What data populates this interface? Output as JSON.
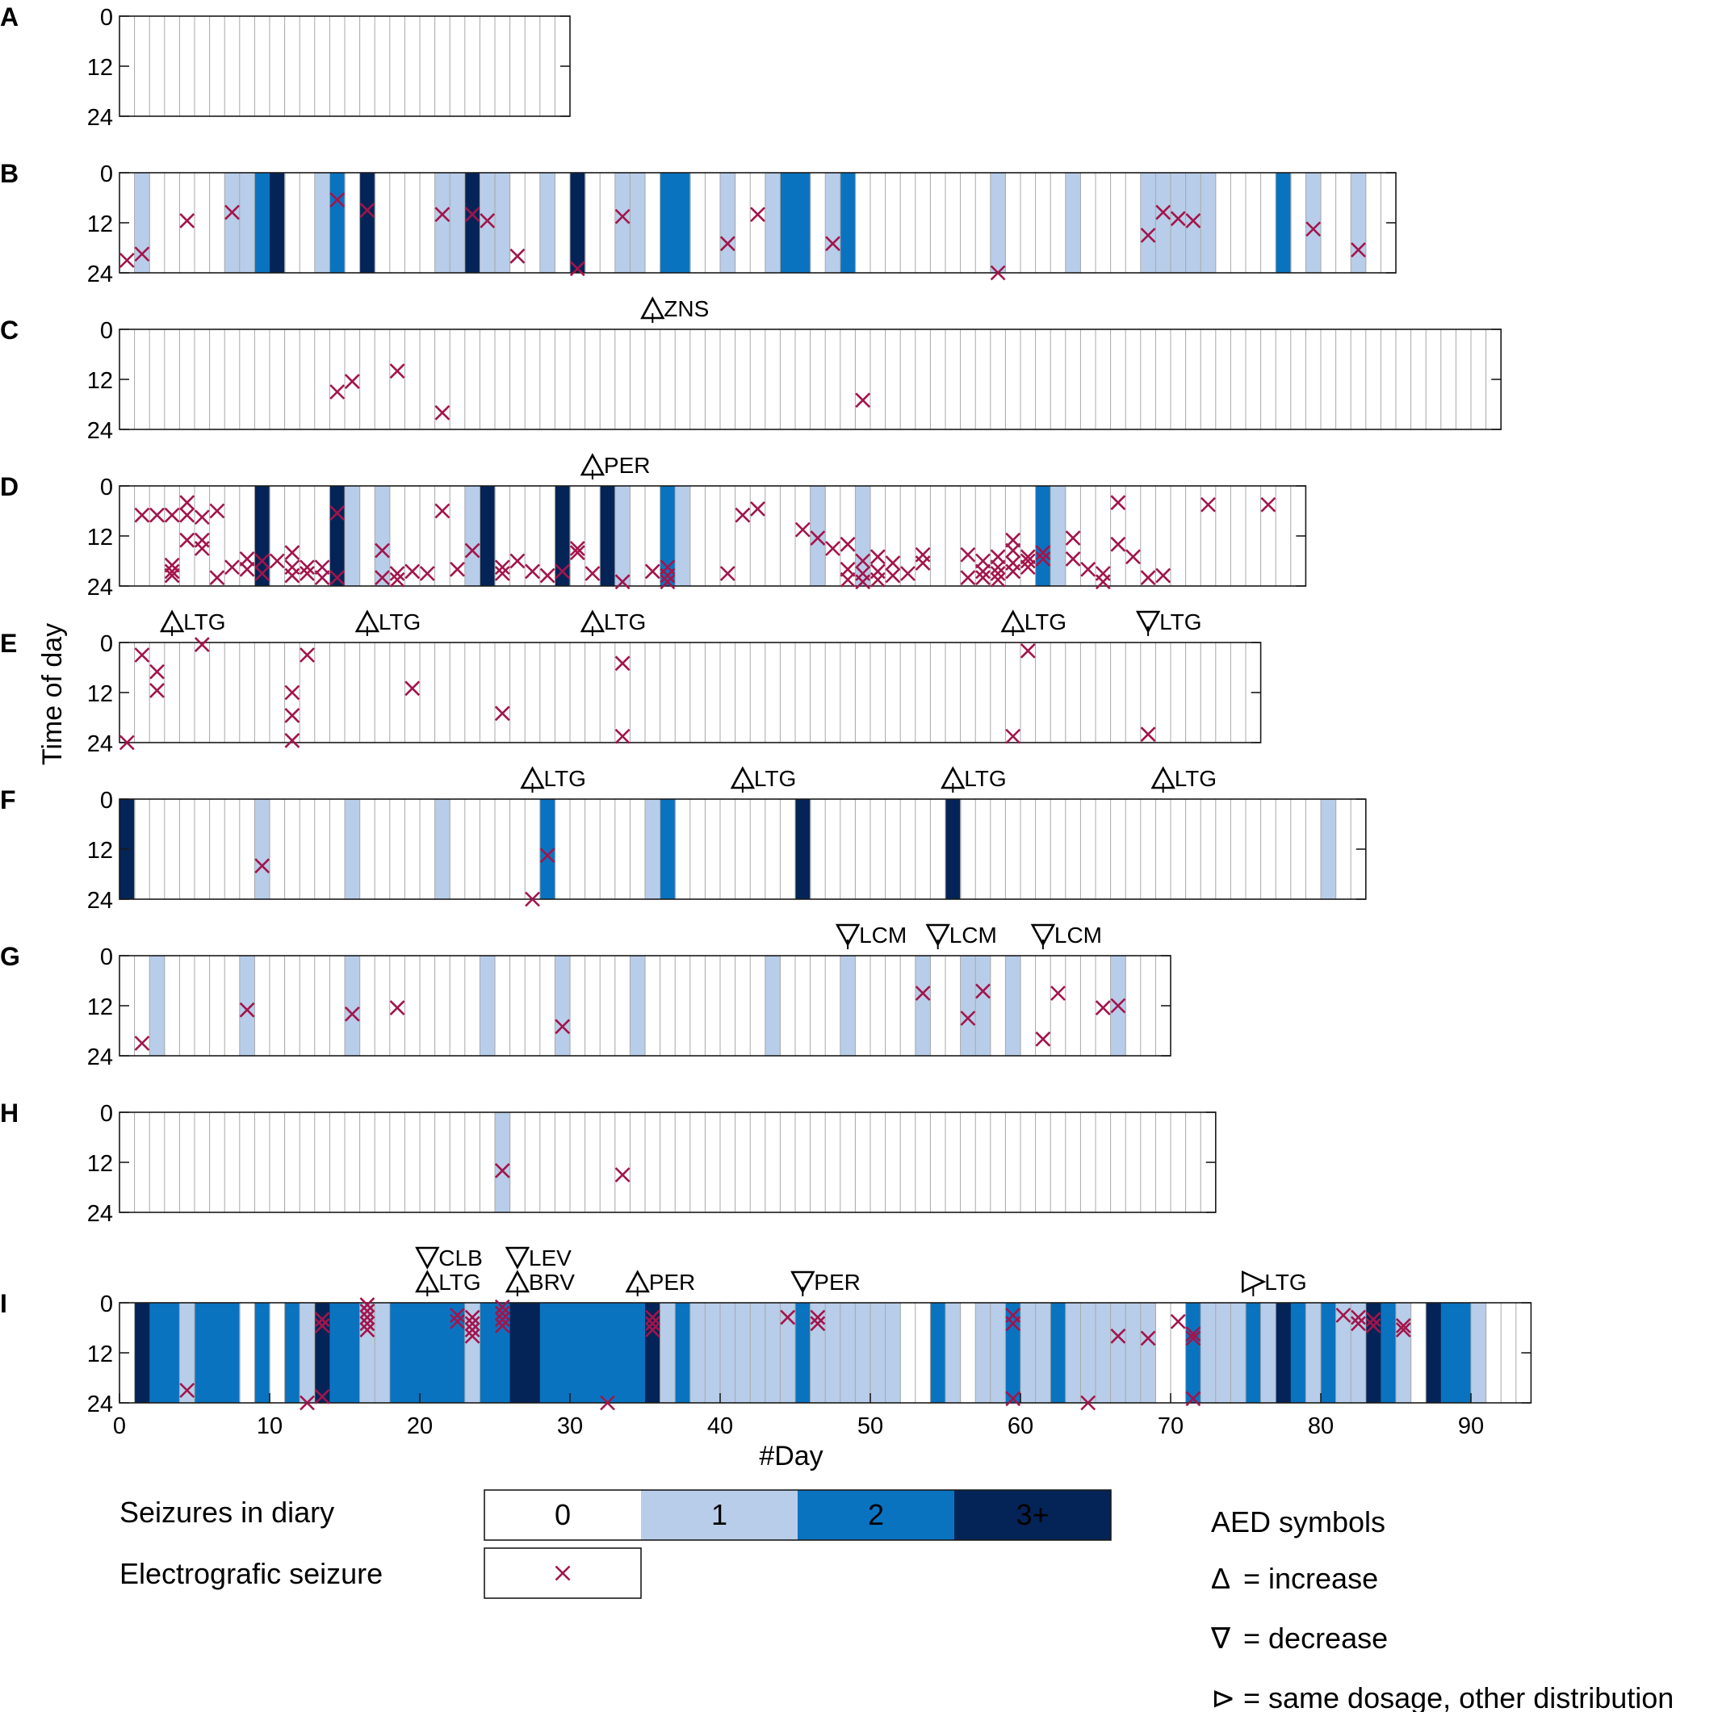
{
  "figure": {
    "ylabel": "Time of day",
    "xlabel": "#Day",
    "x_ticks": [
      "0",
      "10",
      "20",
      "30",
      "40",
      "50",
      "60",
      "70",
      "80",
      "90"
    ],
    "y_ticks": [
      "0",
      "12",
      "24"
    ]
  },
  "colors": {
    "level_0": "#ffffff",
    "level_1": "#b8cde9",
    "level_2": "#0a73c0",
    "level_3": "#042457",
    "seizure_marker": "#a3144b",
    "grid": "#a8a8a8"
  },
  "legend": {
    "diary_label": "Seizures in diary",
    "diary_levels": [
      "0",
      "1",
      "2",
      "3+"
    ],
    "electro_label": "Electrografic seizure",
    "aed_title": "AED symbols",
    "aed_items": [
      {
        "symbol": "Δ",
        "meaning": "= increase"
      },
      {
        "symbol": "∇",
        "meaning": "= decrease"
      },
      {
        "symbol": "⊳",
        "meaning": "= same dosage, other distribution"
      }
    ]
  },
  "chart_data": {
    "type": "heatmap",
    "description_units": {
      "x": "#Day",
      "y": "Time of day (h)"
    },
    "ylim": [
      0,
      24
    ],
    "xlim": [
      0,
      94
    ],
    "panels": [
      {
        "id": "A",
        "days": 30,
        "diary": {},
        "seizures": [],
        "aed": []
      },
      {
        "id": "B",
        "days": 85,
        "diary": {
          "1": 1,
          "7": 1,
          "8": 1,
          "9": 2,
          "10": 3,
          "13": 1,
          "14": 2,
          "16": 3,
          "21": 1,
          "22": 1,
          "23": 3,
          "24": 1,
          "25": 1,
          "28": 1,
          "30": 3,
          "33": 1,
          "34": 1,
          "36": 2,
          "37": 2,
          "40": 1,
          "43": 1,
          "44": 2,
          "45": 2,
          "47": 1,
          "48": 2,
          "58": 1,
          "63": 1,
          "68": 1,
          "69": 1,
          "70": 1,
          "71": 1,
          "72": 1,
          "77": 2,
          "79": 1,
          "82": 1
        },
        "seizures": [
          [
            0.5,
            21
          ],
          [
            1.5,
            19.5
          ],
          [
            4.5,
            11.5
          ],
          [
            7.5,
            9.5
          ],
          [
            14.5,
            6.5
          ],
          [
            16.5,
            9
          ],
          [
            21.5,
            10
          ],
          [
            23.5,
            10
          ],
          [
            24.5,
            11.5
          ],
          [
            26.5,
            20
          ],
          [
            30.5,
            23
          ],
          [
            33.5,
            10.5
          ],
          [
            40.5,
            17
          ],
          [
            42.5,
            10
          ],
          [
            47.5,
            17
          ],
          [
            58.5,
            24
          ],
          [
            68.5,
            15
          ],
          [
            69.5,
            9.5
          ],
          [
            70.5,
            11
          ],
          [
            71.5,
            11.5
          ],
          [
            79.5,
            13.5
          ],
          [
            82.5,
            18.5
          ]
        ],
        "aed": []
      },
      {
        "id": "C",
        "days": 92,
        "diary": {},
        "seizures": [
          [
            14.5,
            15
          ],
          [
            15.5,
            12.5
          ],
          [
            18.5,
            10
          ],
          [
            21.5,
            20
          ],
          [
            49.5,
            17
          ]
        ],
        "aed": [
          {
            "day": 35.5,
            "symbol": "increase",
            "drug": "ZNS"
          }
        ]
      },
      {
        "id": "D",
        "days": 79,
        "diary": {
          "9": 3,
          "14": 3,
          "15": 1,
          "17": 1,
          "23": 1,
          "24": 3,
          "29": 3,
          "32": 3,
          "33": 1,
          "36": 2,
          "37": 1,
          "46": 1,
          "49": 1,
          "61": 2,
          "62": 1
        },
        "seizures": [
          [
            1.5,
            7
          ],
          [
            2.5,
            7
          ],
          [
            3.5,
            7
          ],
          [
            3.5,
            19
          ],
          [
            3.5,
            20.5
          ],
          [
            3.5,
            21.5
          ],
          [
            4.5,
            4
          ],
          [
            4.5,
            7
          ],
          [
            4.5,
            13
          ],
          [
            5.5,
            7.5
          ],
          [
            5.5,
            13
          ],
          [
            5.5,
            15
          ],
          [
            6.5,
            6
          ],
          [
            6.5,
            22
          ],
          [
            7.5,
            19.5
          ],
          [
            8.5,
            17.5
          ],
          [
            8.5,
            20
          ],
          [
            9.5,
            18
          ],
          [
            9.5,
            21
          ],
          [
            10.5,
            18
          ],
          [
            11.5,
            16
          ],
          [
            11.5,
            19.5
          ],
          [
            11.5,
            21.5
          ],
          [
            12.5,
            19.5
          ],
          [
            12.5,
            21
          ],
          [
            13.5,
            19.5
          ],
          [
            13.5,
            22
          ],
          [
            14.5,
            6.5
          ],
          [
            14.5,
            22
          ],
          [
            17.5,
            15.5
          ],
          [
            17.5,
            22
          ],
          [
            18.5,
            21
          ],
          [
            18.5,
            22.5
          ],
          [
            19.5,
            20.5
          ],
          [
            20.5,
            21
          ],
          [
            21.5,
            6
          ],
          [
            22.5,
            20
          ],
          [
            23.5,
            15.5
          ],
          [
            25.5,
            19.5
          ],
          [
            25.5,
            21
          ],
          [
            26.5,
            18
          ],
          [
            27.5,
            20.5
          ],
          [
            28.5,
            21.5
          ],
          [
            29.5,
            20.5
          ],
          [
            30.5,
            15
          ],
          [
            30.5,
            16
          ],
          [
            31.5,
            21
          ],
          [
            33.5,
            23
          ],
          [
            35.5,
            20.5
          ],
          [
            36.5,
            19.5
          ],
          [
            36.5,
            21.5
          ],
          [
            36.5,
            23
          ],
          [
            40.5,
            21
          ],
          [
            41.5,
            7
          ],
          [
            42.5,
            5.5
          ],
          [
            45.5,
            10.5
          ],
          [
            46.5,
            12.5
          ],
          [
            47.5,
            15
          ],
          [
            48.5,
            14
          ],
          [
            48.5,
            20
          ],
          [
            48.5,
            22.5
          ],
          [
            49.5,
            18
          ],
          [
            49.5,
            21
          ],
          [
            49.5,
            23
          ],
          [
            50.5,
            17
          ],
          [
            50.5,
            20.5
          ],
          [
            50.5,
            22.5
          ],
          [
            51.5,
            18.5
          ],
          [
            51.5,
            21.5
          ],
          [
            52.5,
            21
          ],
          [
            53.5,
            16.5
          ],
          [
            53.5,
            18.5
          ],
          [
            56.5,
            16.5
          ],
          [
            56.5,
            22
          ],
          [
            57.5,
            18
          ],
          [
            57.5,
            20.5
          ],
          [
            57.5,
            22
          ],
          [
            58.5,
            17
          ],
          [
            58.5,
            19.5
          ],
          [
            58.5,
            21
          ],
          [
            58.5,
            22.5
          ],
          [
            59.5,
            13
          ],
          [
            59.5,
            15.5
          ],
          [
            59.5,
            18.5
          ],
          [
            59.5,
            20.5
          ],
          [
            60.5,
            17
          ],
          [
            60.5,
            18
          ],
          [
            60.5,
            19.5
          ],
          [
            61.5,
            16
          ],
          [
            61.5,
            17.5
          ],
          [
            63.5,
            12.5
          ],
          [
            63.5,
            17.5
          ],
          [
            64.5,
            20
          ],
          [
            65.5,
            21
          ],
          [
            65.5,
            23
          ],
          [
            66.5,
            4
          ],
          [
            66.5,
            14
          ],
          [
            67.5,
            17
          ],
          [
            68.5,
            22
          ],
          [
            69.5,
            21.5
          ],
          [
            72.5,
            4.5
          ],
          [
            76.5,
            4.5
          ]
        ],
        "aed": [
          {
            "day": 31.5,
            "symbol": "increase",
            "drug": "PER"
          }
        ]
      },
      {
        "id": "E",
        "days": 76,
        "diary": {},
        "seizures": [
          [
            0.5,
            24
          ],
          [
            1.5,
            3
          ],
          [
            2.5,
            7
          ],
          [
            2.5,
            11.5
          ],
          [
            5.5,
            0.5
          ],
          [
            11.5,
            12
          ],
          [
            11.5,
            17.5
          ],
          [
            11.5,
            23.5
          ],
          [
            12.5,
            3
          ],
          [
            19.5,
            11
          ],
          [
            25.5,
            17
          ],
          [
            33.5,
            5
          ],
          [
            33.5,
            22.5
          ],
          [
            59.5,
            22.5
          ],
          [
            60.5,
            2
          ],
          [
            68.5,
            22
          ]
        ],
        "aed": [
          {
            "day": 3.5,
            "symbol": "increase",
            "drug": "LTG"
          },
          {
            "day": 16.5,
            "symbol": "increase",
            "drug": "LTG"
          },
          {
            "day": 31.5,
            "symbol": "increase",
            "drug": "LTG"
          },
          {
            "day": 59.5,
            "symbol": "increase",
            "drug": "LTG"
          },
          {
            "day": 68.5,
            "symbol": "decrease",
            "drug": "LTG"
          }
        ]
      },
      {
        "id": "F",
        "days": 83,
        "diary": {
          "0": 3,
          "9": 1,
          "15": 1,
          "21": 1,
          "28": 2,
          "35": 1,
          "36": 2,
          "45": 3,
          "55": 3,
          "80": 1
        },
        "seizures": [
          [
            9.5,
            16
          ],
          [
            27.5,
            24
          ],
          [
            28.5,
            13.5
          ]
        ],
        "aed": [
          {
            "day": 27.5,
            "symbol": "increase",
            "drug": "LTG"
          },
          {
            "day": 41.5,
            "symbol": "increase",
            "drug": "LTG"
          },
          {
            "day": 55.5,
            "symbol": "increase",
            "drug": "LTG"
          },
          {
            "day": 69.5,
            "symbol": "increase",
            "drug": "LTG"
          }
        ]
      },
      {
        "id": "G",
        "days": 70,
        "diary": {
          "2": 1,
          "8": 1,
          "15": 1,
          "24": 1,
          "29": 1,
          "34": 1,
          "43": 1,
          "48": 1,
          "53": 1,
          "56": 1,
          "57": 1,
          "59": 1,
          "66": 1
        },
        "seizures": [
          [
            1.5,
            21
          ],
          [
            8.5,
            13
          ],
          [
            15.5,
            14
          ],
          [
            18.5,
            12.5
          ],
          [
            29.5,
            17
          ],
          [
            53.5,
            9
          ],
          [
            56.5,
            15
          ],
          [
            57.5,
            8.5
          ],
          [
            61.5,
            20
          ],
          [
            62.5,
            9
          ],
          [
            65.5,
            12.5
          ],
          [
            66.5,
            12
          ]
        ],
        "aed": [
          {
            "day": 48.5,
            "symbol": "decrease",
            "drug": "LCM"
          },
          {
            "day": 54.5,
            "symbol": "decrease",
            "drug": "LCM"
          },
          {
            "day": 61.5,
            "symbol": "decrease",
            "drug": "LCM"
          }
        ]
      },
      {
        "id": "H",
        "days": 73,
        "diary": {
          "25": 1
        },
        "seizures": [
          [
            25.5,
            14
          ],
          [
            33.5,
            15
          ]
        ],
        "aed": []
      },
      {
        "id": "I",
        "days": 94,
        "diary": {
          "1": 3,
          "2": 2,
          "3": 2,
          "4": 1,
          "5": 2,
          "6": 2,
          "7": 2,
          "9": 2,
          "11": 2,
          "12": 1,
          "13": 3,
          "14": 2,
          "15": 2,
          "16": 1,
          "17": 1,
          "18": 2,
          "19": 2,
          "20": 2,
          "21": 2,
          "22": 2,
          "23": 1,
          "24": 2,
          "25": 2,
          "26": 3,
          "27": 3,
          "28": 2,
          "29": 2,
          "30": 2,
          "31": 2,
          "32": 2,
          "33": 2,
          "34": 2,
          "35": 3,
          "36": 1,
          "37": 2,
          "38": 1,
          "39": 1,
          "40": 1,
          "41": 1,
          "42": 1,
          "43": 1,
          "44": 1,
          "45": 2,
          "46": 1,
          "47": 1,
          "48": 1,
          "49": 1,
          "50": 1,
          "51": 1,
          "54": 2,
          "55": 1,
          "57": 1,
          "58": 1,
          "59": 2,
          "60": 1,
          "61": 1,
          "62": 2,
          "63": 1,
          "64": 1,
          "65": 1,
          "66": 1,
          "67": 1,
          "68": 1,
          "71": 2,
          "72": 1,
          "73": 1,
          "74": 1,
          "75": 2,
          "76": 1,
          "77": 3,
          "78": 2,
          "79": 1,
          "80": 2,
          "81": 1,
          "82": 1,
          "83": 3,
          "84": 2,
          "85": 1,
          "87": 3,
          "88": 2,
          "89": 2,
          "90": 1
        },
        "seizures": [
          [
            4.5,
            21
          ],
          [
            12.5,
            24
          ],
          [
            13.5,
            4
          ],
          [
            13.5,
            5.5
          ],
          [
            13.5,
            22.5
          ],
          [
            16.5,
            0.5
          ],
          [
            16.5,
            2
          ],
          [
            16.5,
            3.5
          ],
          [
            16.5,
            5
          ],
          [
            16.5,
            6.5
          ],
          [
            22.5,
            3
          ],
          [
            22.5,
            4.5
          ],
          [
            23.5,
            3.5
          ],
          [
            23.5,
            5
          ],
          [
            23.5,
            6.5
          ],
          [
            23.5,
            8
          ],
          [
            25.5,
            1
          ],
          [
            25.5,
            2.5
          ],
          [
            25.5,
            4
          ],
          [
            25.5,
            5.5
          ],
          [
            32.5,
            24
          ],
          [
            35.5,
            3.5
          ],
          [
            35.5,
            5
          ],
          [
            35.5,
            6.5
          ],
          [
            44.5,
            3.5
          ],
          [
            46.5,
            3.5
          ],
          [
            46.5,
            5
          ],
          [
            59.5,
            3
          ],
          [
            59.5,
            5
          ],
          [
            59.5,
            23
          ],
          [
            64.5,
            24
          ],
          [
            66.5,
            8
          ],
          [
            68.5,
            8.5
          ],
          [
            70.5,
            4.5
          ],
          [
            71.5,
            7.5
          ],
          [
            71.5,
            8.5
          ],
          [
            71.5,
            23
          ],
          [
            81.5,
            3
          ],
          [
            82.5,
            3.5
          ],
          [
            82.5,
            5
          ],
          [
            83.5,
            4
          ],
          [
            83.5,
            5.5
          ],
          [
            85.5,
            5.5
          ],
          [
            85.5,
            6.5
          ]
        ],
        "aed": [
          {
            "day": 20.5,
            "symbol": "decrease",
            "drug": "CLB"
          },
          {
            "day": 20.5,
            "symbol": "increase",
            "drug": "LTG"
          },
          {
            "day": 26.5,
            "symbol": "decrease",
            "drug": "LEV"
          },
          {
            "day": 26.5,
            "symbol": "increase",
            "drug": "BRV"
          },
          {
            "day": 34.5,
            "symbol": "increase",
            "drug": "PER"
          },
          {
            "day": 45.5,
            "symbol": "decrease",
            "drug": "PER"
          },
          {
            "day": 75.5,
            "symbol": "same",
            "drug": "LTG"
          }
        ]
      }
    ]
  }
}
